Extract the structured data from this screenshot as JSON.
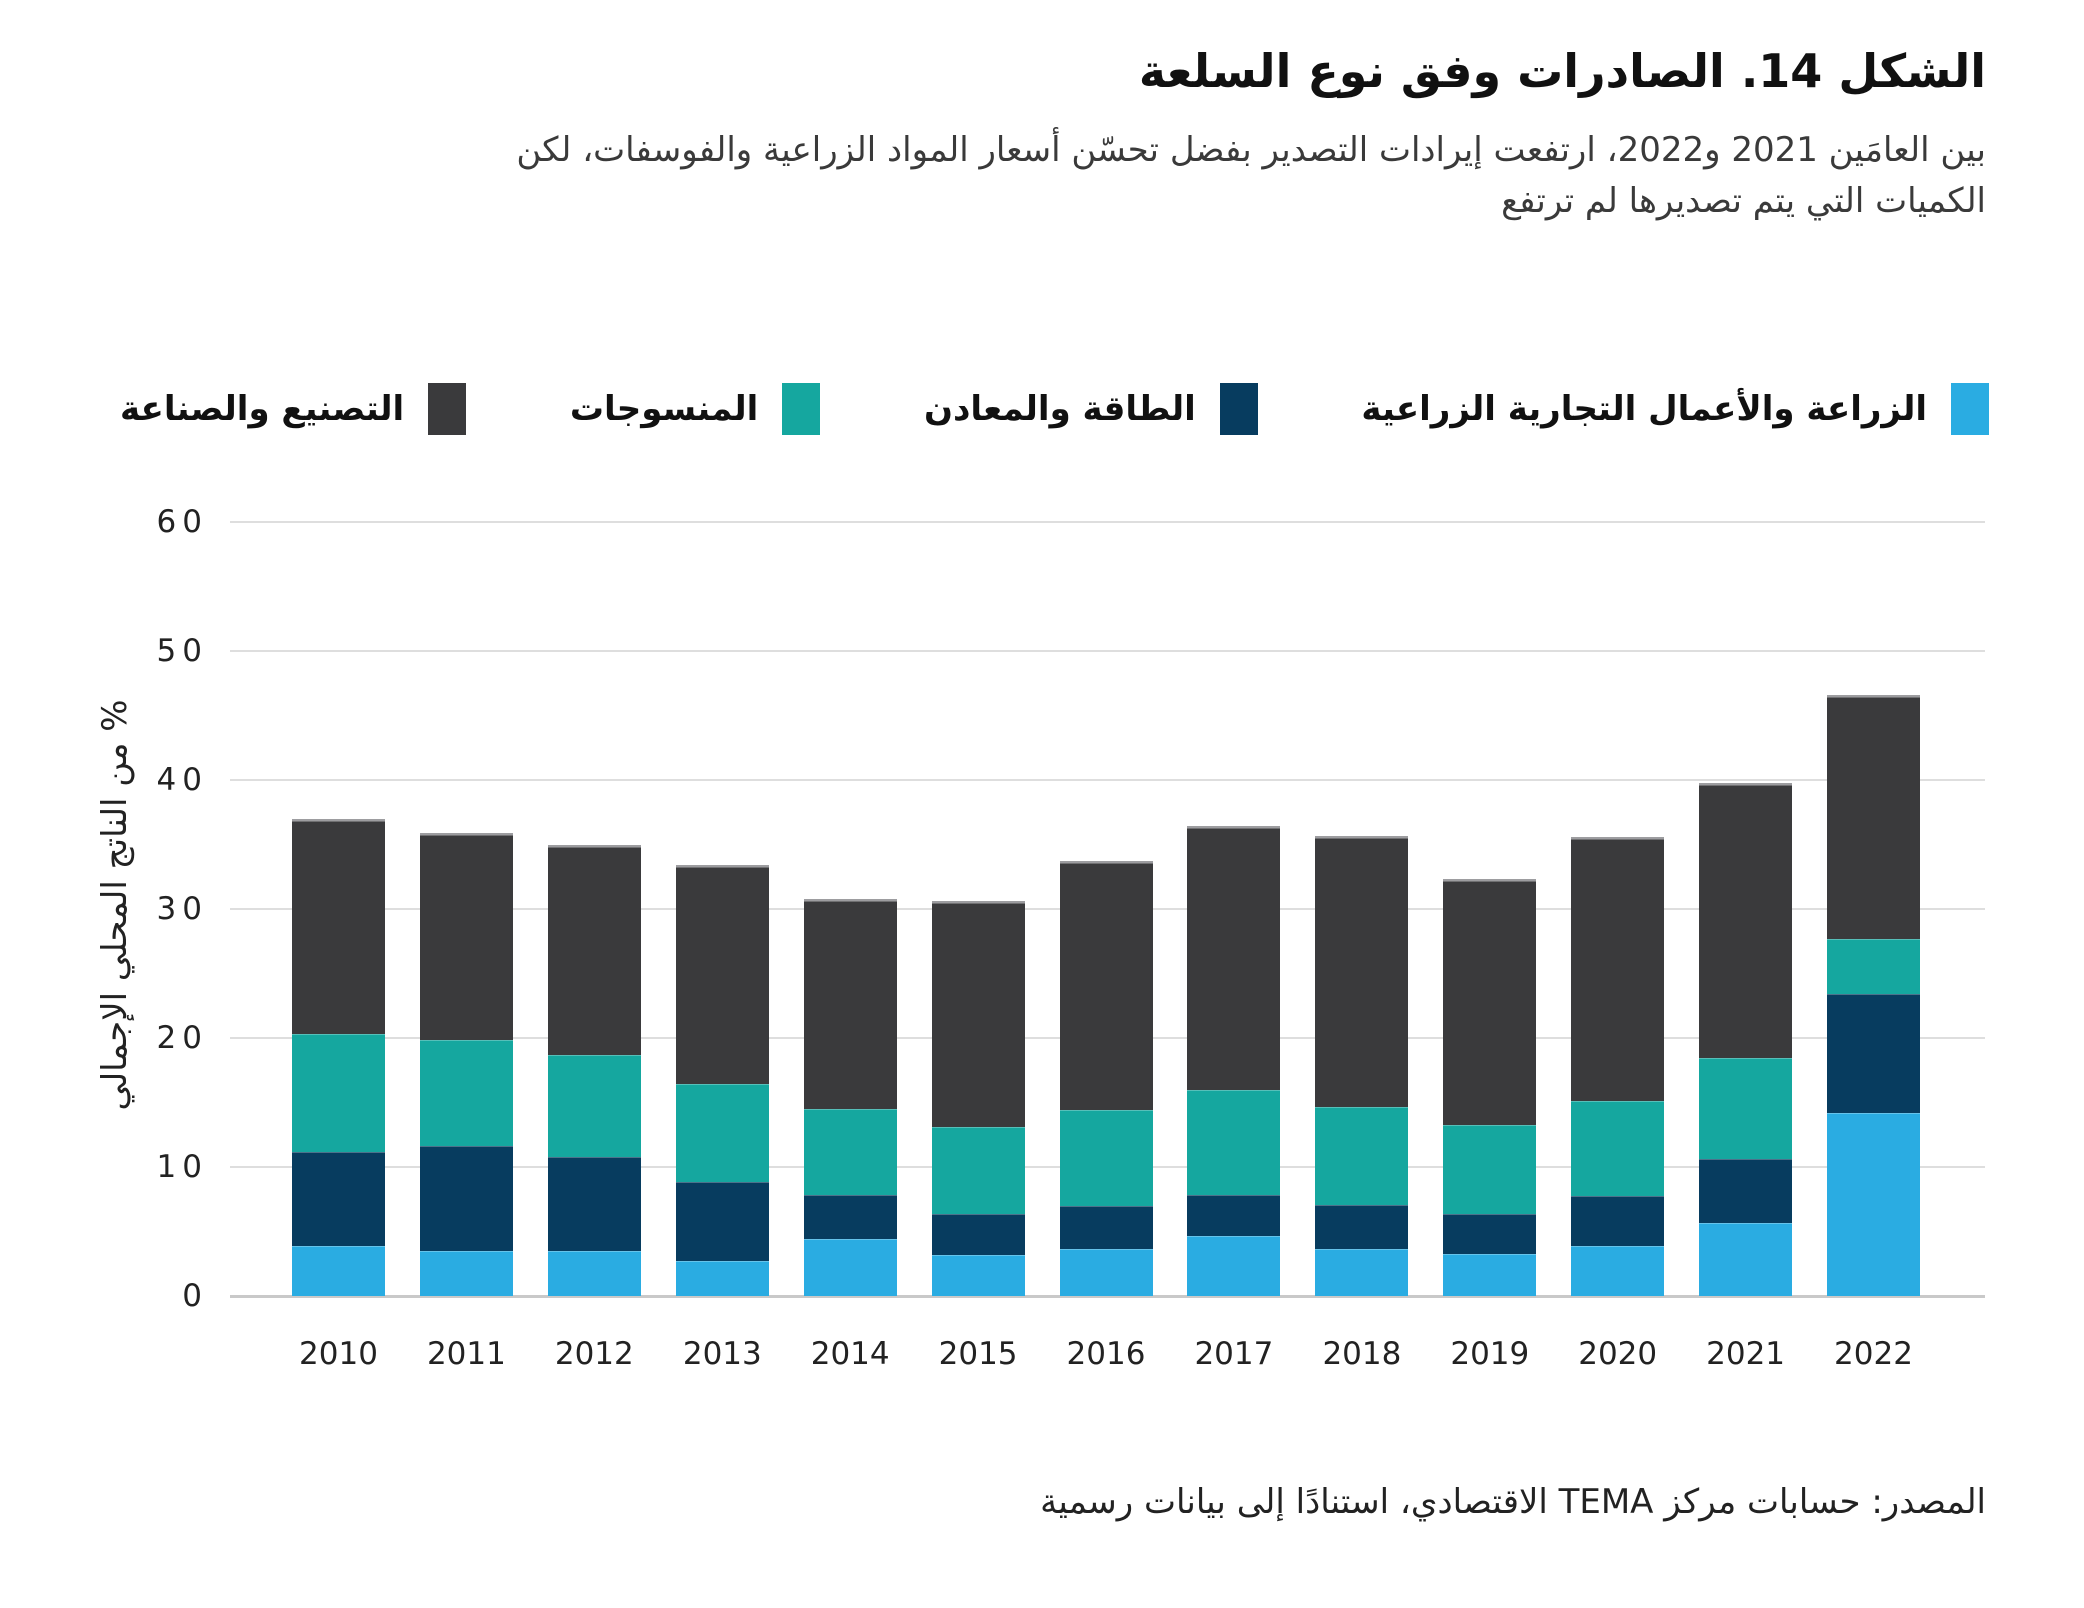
{
  "figure": {
    "title": "الشكل 14. الصادرات وفق نوع السلعة",
    "subtitle_line1": "بين العامَين 2021 و2022، ارتفعت إيرادات التصدير بفضل تحسّن أسعار المواد الزراعية والفوسفات، لكن",
    "subtitle_line2": "الكميات التي يتم تصديرها لم ترتفع",
    "source": "المصدر: حسابات مركز TEMA الاقتصادي، استنادًا إلى بيانات رسمية"
  },
  "legend": [
    {
      "label": "الزراعة والأعمال التجارية الزراعية",
      "color": "#2AACE2"
    },
    {
      "label": "الطاقة والمعادن",
      "color": "#073C5F"
    },
    {
      "label": "المنسوجات",
      "color": "#15A79F"
    },
    {
      "label": "التصنيع والصناعة",
      "color": "#3A3A3C"
    }
  ],
  "chart_data": {
    "type": "bar",
    "stacked": true,
    "categories": [
      "2010",
      "2011",
      "2012",
      "2013",
      "2014",
      "2015",
      "2016",
      "2017",
      "2018",
      "2019",
      "2020",
      "2021",
      "2022"
    ],
    "series": [
      {
        "name": "الزراعة والأعمال التجارية الزراعية",
        "color": "#2AACE2",
        "values": [
          3.9,
          3.5,
          3.5,
          2.7,
          4.4,
          3.2,
          3.7,
          4.7,
          3.7,
          3.3,
          3.9,
          5.7,
          14.2
        ]
      },
      {
        "name": "الطاقة والمعادن",
        "color": "#073C5F",
        "values": [
          7.3,
          8.2,
          7.3,
          6.2,
          3.5,
          3.2,
          3.3,
          3.2,
          3.4,
          3.1,
          3.9,
          5.0,
          9.3
        ]
      },
      {
        "name": "المنسوجات",
        "color": "#15A79F",
        "values": [
          9.2,
          8.2,
          8.0,
          7.6,
          6.7,
          6.8,
          7.5,
          8.1,
          7.6,
          6.9,
          7.4,
          7.8,
          4.3
        ]
      },
      {
        "name": "التصنيع والصناعة",
        "color": "#3A3A3C",
        "values": [
          16.6,
          16.0,
          16.2,
          16.9,
          16.2,
          17.4,
          19.2,
          20.4,
          21.0,
          19.0,
          20.4,
          21.3,
          18.8
        ]
      }
    ],
    "totals": [
      37.0,
      35.9,
      35.0,
      33.4,
      30.8,
      30.6,
      33.7,
      36.4,
      35.7,
      32.3,
      35.6,
      39.8,
      46.6
    ],
    "title": "الشكل 14. الصادرات وفق نوع السلعة",
    "xlabel": "",
    "ylabel": "% من الناتج المحلي الإجمالي",
    "ylim": [
      0,
      60
    ],
    "yticks": [
      0,
      10,
      20,
      30,
      40,
      50,
      60
    ],
    "grid": true,
    "legend_position": "top"
  }
}
